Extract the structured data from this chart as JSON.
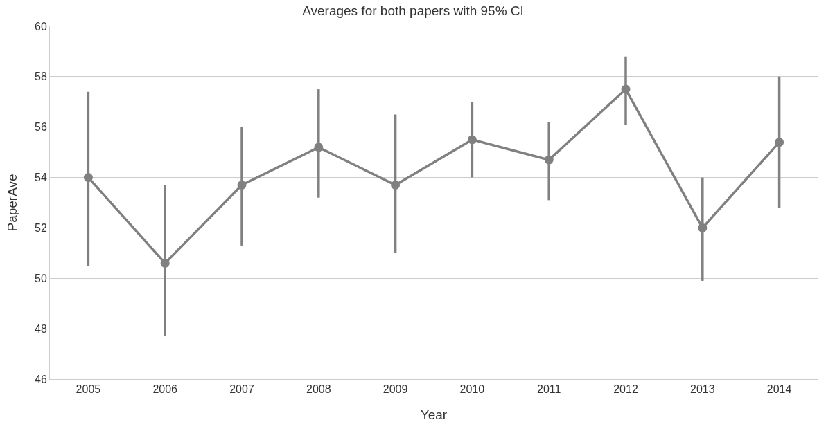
{
  "chart_data": {
    "type": "line",
    "title": "Averages for both papers with 95% CI",
    "xlabel": "Year",
    "ylabel": "PaperAve",
    "categories": [
      "2005",
      "2006",
      "2007",
      "2008",
      "2009",
      "2010",
      "2011",
      "2012",
      "2013",
      "2014"
    ],
    "series": [
      {
        "color": "#808080",
        "values": [
          54.0,
          50.6,
          53.7,
          55.2,
          53.7,
          55.5,
          54.7,
          57.5,
          52.0,
          55.4
        ],
        "errors": [
          [
            50.5,
            57.4
          ],
          [
            47.7,
            53.7
          ],
          [
            51.3,
            56.0
          ],
          [
            53.2,
            57.5
          ],
          [
            51.0,
            56.5
          ],
          [
            54.0,
            57.0
          ],
          [
            53.1,
            56.2
          ],
          [
            56.1,
            58.8
          ],
          [
            49.9,
            54.0
          ],
          [
            52.8,
            58.0
          ]
        ]
      }
    ],
    "ylim": [
      46,
      60
    ],
    "yticks": [
      46,
      48,
      50,
      52,
      54,
      56,
      58,
      60
    ],
    "grid": "y",
    "marker": "circle",
    "line_style": "solid"
  }
}
